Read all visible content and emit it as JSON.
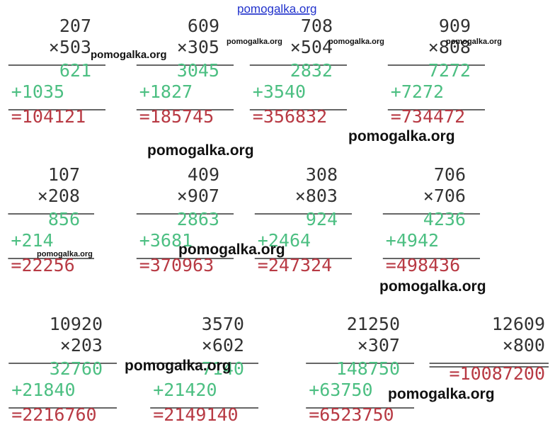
{
  "header": {
    "watermark": "pomogalka.org"
  },
  "problems": [
    {
      "multiplicand": "207",
      "multiplier": "×503",
      "partials": [
        "621",
        "+1035"
      ],
      "result": "=104121"
    },
    {
      "multiplicand": "609",
      "multiplier": "×305",
      "partials": [
        "3045",
        "+1827"
      ],
      "result": "=185745"
    },
    {
      "multiplicand": "708",
      "multiplier": "×504",
      "partials": [
        "2832",
        "+3540"
      ],
      "result": "=356832"
    },
    {
      "multiplicand": "909",
      "multiplier": "×808",
      "partials": [
        "7272",
        "+7272"
      ],
      "result": "=734472"
    },
    {
      "multiplicand": "107",
      "multiplier": "×208",
      "partials": [
        "856",
        "+214"
      ],
      "result": "=22256"
    },
    {
      "multiplicand": "409",
      "multiplier": "×907",
      "partials": [
        "2863",
        "+3681"
      ],
      "result": "=370963"
    },
    {
      "multiplicand": "308",
      "multiplier": "×803",
      "partials": [
        "924",
        "+2464"
      ],
      "result": "=247324"
    },
    {
      "multiplicand": "706",
      "multiplier": "×706",
      "partials": [
        "4236",
        "+4942"
      ],
      "result": "=498436"
    },
    {
      "multiplicand": "10920",
      "multiplier": "×203",
      "partials": [
        "32760",
        "+21840"
      ],
      "result": "=2216760"
    },
    {
      "multiplicand": "3570",
      "multiplier": "×602",
      "partials": [
        "7140",
        "+21420"
      ],
      "result": "=2149140"
    },
    {
      "multiplicand": "21250",
      "multiplier": "×307",
      "partials": [
        "148750",
        "+63750"
      ],
      "result": "=6523750"
    },
    {
      "multiplicand": "12609",
      "multiplier": "×800",
      "partials": [],
      "result": "=10087200"
    }
  ],
  "watermarks": [
    "pomogalka.org",
    "pomogalka.org",
    "pomogalka.org",
    "pomogalka.org",
    "pomogalka.org",
    "pomogalka.org",
    "pomogalka.org",
    "pomogalka.org",
    "pomogalka.org",
    "pomogalka.org",
    "pomogalka.org"
  ]
}
